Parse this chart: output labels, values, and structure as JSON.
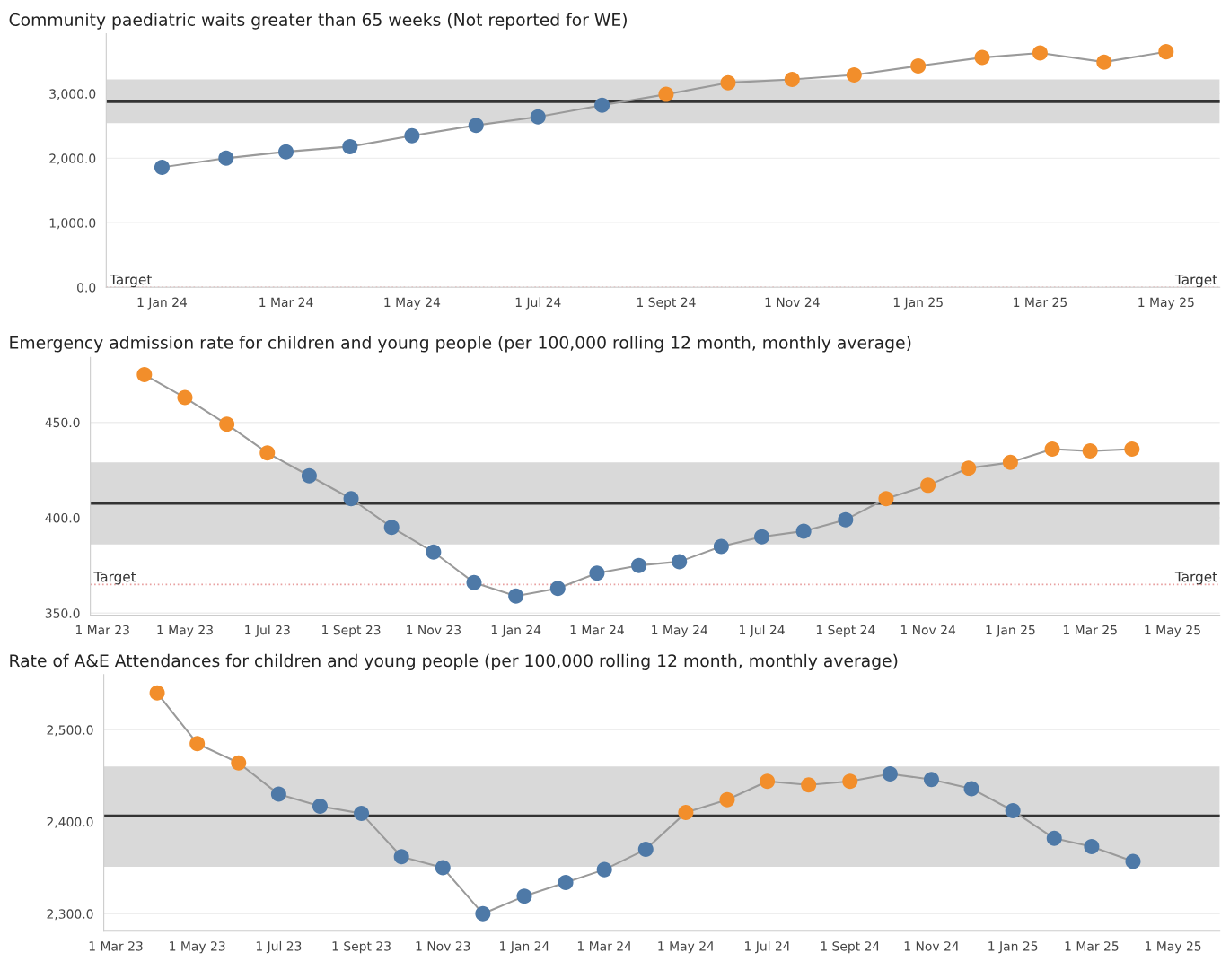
{
  "chart_data": [
    {
      "type": "line",
      "title": "Community paediatric waits greater than 65 weeks (Not reported for WE)",
      "x": [
        "2024-01",
        "2024-02",
        "2024-03",
        "2024-04",
        "2024-05",
        "2024-06",
        "2024-07",
        "2024-08",
        "2024-09",
        "2024-10",
        "2024-11",
        "2024-12",
        "2025-01",
        "2025-02",
        "2025-03",
        "2025-04",
        "2025-05"
      ],
      "series": [
        {
          "color": "#9a9a9a",
          "values": [
            1860,
            2000,
            2100,
            2180,
            2350,
            2510,
            2640,
            2820,
            2990,
            3170,
            3220,
            3290,
            3430,
            3560,
            3630,
            3490,
            3650
          ],
          "colors": [
            "#4e79a7",
            "#4e79a7",
            "#4e79a7",
            "#4e79a7",
            "#4e79a7",
            "#4e79a7",
            "#4e79a7",
            "#4e79a7",
            "#f28e2b",
            "#f28e2b",
            "#f28e2b",
            "#f28e2b",
            "#f28e2b",
            "#f28e2b",
            "#f28e2b",
            "#f28e2b",
            "#f28e2b"
          ]
        }
      ],
      "marker": "circle",
      "xlim": [
        "2023-12-05",
        "2025-05-27"
      ],
      "xticks": [
        {
          "value": "2024-01-01",
          "label": "1 Jan 24"
        },
        {
          "value": "2024-03-01",
          "label": "1 Mar 24"
        },
        {
          "value": "2024-05-01",
          "label": "1 May 24"
        },
        {
          "value": "2024-07-01",
          "label": "1 Jul 24"
        },
        {
          "value": "2024-09-01",
          "label": "1 Sept 24"
        },
        {
          "value": "2024-11-01",
          "label": "1 Nov 24"
        },
        {
          "value": "2025-01-01",
          "label": "1 Jan 25"
        },
        {
          "value": "2025-03-01",
          "label": "1 Mar 25"
        },
        {
          "value": "2025-05-01",
          "label": "1 May 25"
        }
      ],
      "ylim": [
        0,
        3930
      ],
      "yticks": [
        {
          "value": 0,
          "label": "0.0"
        },
        {
          "value": 1000,
          "label": "1,000.0"
        },
        {
          "value": 2000,
          "label": "2,000.0"
        },
        {
          "value": 3000,
          "label": "3,000.0"
        }
      ],
      "grid": "y",
      "bands": [
        {
          "axis": "y",
          "from": 2542,
          "to": 3222,
          "color": "#d9d9d9"
        }
      ],
      "ref_lines": [
        {
          "axis": "y",
          "value": 2875,
          "color": "#333333",
          "line_style": "solid"
        },
        {
          "axis": "y",
          "value": 0,
          "label": "Target",
          "color": "#e8a0a0",
          "line_style": "dotted"
        }
      ]
    },
    {
      "type": "line",
      "title": "Emergency admission rate for children and young people (per 100,000 rolling 12 month, monthly average)",
      "x": [
        "2023-04",
        "2023-05",
        "2023-06",
        "2023-07",
        "2023-08",
        "2023-09",
        "2023-10",
        "2023-11",
        "2023-12",
        "2024-01",
        "2024-02",
        "2024-03",
        "2024-04",
        "2024-05",
        "2024-06",
        "2024-07",
        "2024-08",
        "2024-09",
        "2024-10",
        "2024-11",
        "2024-12",
        "2025-01",
        "2025-02",
        "2025-03",
        "2025-04"
      ],
      "series": [
        {
          "color": "#9a9a9a",
          "values": [
            475,
            463,
            449,
            434,
            422,
            410,
            395,
            382,
            366,
            359,
            363,
            371,
            375,
            377,
            385,
            390,
            393,
            399,
            410,
            417,
            426,
            429,
            436,
            435,
            436
          ],
          "colors": [
            "#f28e2b",
            "#f28e2b",
            "#f28e2b",
            "#f28e2b",
            "#4e79a7",
            "#4e79a7",
            "#4e79a7",
            "#4e79a7",
            "#4e79a7",
            "#4e79a7",
            "#4e79a7",
            "#4e79a7",
            "#4e79a7",
            "#4e79a7",
            "#4e79a7",
            "#4e79a7",
            "#4e79a7",
            "#4e79a7",
            "#f28e2b",
            "#f28e2b",
            "#f28e2b",
            "#f28e2b",
            "#f28e2b",
            "#f28e2b",
            "#f28e2b"
          ]
        }
      ],
      "marker": "circle",
      "xlim": [
        "2023-02-20",
        "2025-06-05"
      ],
      "xticks": [
        {
          "value": "2023-03-01",
          "label": "1 Mar 23"
        },
        {
          "value": "2023-05-01",
          "label": "1 May 23"
        },
        {
          "value": "2023-07-01",
          "label": "1 Jul 23"
        },
        {
          "value": "2023-09-01",
          "label": "1 Sept 23"
        },
        {
          "value": "2023-11-01",
          "label": "1 Nov 23"
        },
        {
          "value": "2024-01-01",
          "label": "1 Jan 24"
        },
        {
          "value": "2024-03-01",
          "label": "1 Mar 24"
        },
        {
          "value": "2024-05-01",
          "label": "1 May 24"
        },
        {
          "value": "2024-07-01",
          "label": "1 Jul 24"
        },
        {
          "value": "2024-09-01",
          "label": "1 Sept 24"
        },
        {
          "value": "2024-11-01",
          "label": "1 Nov 24"
        },
        {
          "value": "2025-01-01",
          "label": "1 Jan 25"
        },
        {
          "value": "2025-03-01",
          "label": "1 Mar 25"
        },
        {
          "value": "2025-05-01",
          "label": "1 May 25"
        }
      ],
      "ylim": [
        349,
        484
      ],
      "yticks": [
        {
          "value": 350,
          "label": "350.0"
        },
        {
          "value": 400,
          "label": "400.0"
        },
        {
          "value": 450,
          "label": "450.0"
        }
      ],
      "grid": "y",
      "bands": [
        {
          "axis": "y",
          "from": 386,
          "to": 429,
          "color": "#d9d9d9"
        }
      ],
      "ref_lines": [
        {
          "axis": "y",
          "value": 407.5,
          "color": "#333333",
          "line_style": "solid"
        },
        {
          "axis": "y",
          "value": 365,
          "label": "Target",
          "color": "#e8a0a0",
          "line_style": "dotted"
        }
      ]
    },
    {
      "type": "line",
      "title": "Rate of A&E Attendances for children and young people (per 100,000 rolling 12 month, monthly average)",
      "x": [
        "2023-04",
        "2023-05",
        "2023-06",
        "2023-07",
        "2023-08",
        "2023-09",
        "2023-10",
        "2023-11",
        "2023-12",
        "2024-01",
        "2024-02",
        "2024-03",
        "2024-04",
        "2024-05",
        "2024-06",
        "2024-07",
        "2024-08",
        "2024-09",
        "2024-10",
        "2024-11",
        "2024-12",
        "2025-01",
        "2025-02",
        "2025-03",
        "2025-04"
      ],
      "series": [
        {
          "color": "#9a9a9a",
          "values": [
            2540,
            2485,
            2464,
            2430,
            2417,
            2409,
            2362,
            2350,
            2300,
            2319,
            2334,
            2348,
            2370,
            2410,
            2424,
            2444,
            2440,
            2444,
            2452,
            2446,
            2436,
            2412,
            2382,
            2373,
            2357
          ],
          "colors": [
            "#f28e2b",
            "#f28e2b",
            "#f28e2b",
            "#4e79a7",
            "#4e79a7",
            "#4e79a7",
            "#4e79a7",
            "#4e79a7",
            "#4e79a7",
            "#4e79a7",
            "#4e79a7",
            "#4e79a7",
            "#4e79a7",
            "#f28e2b",
            "#f28e2b",
            "#f28e2b",
            "#f28e2b",
            "#f28e2b",
            "#4e79a7",
            "#4e79a7",
            "#4e79a7",
            "#4e79a7",
            "#4e79a7",
            "#4e79a7",
            "#4e79a7"
          ]
        }
      ],
      "marker": "circle",
      "xlim": [
        "2023-02-20",
        "2025-06-05"
      ],
      "xticks": [
        {
          "value": "2023-03-01",
          "label": "1 Mar 23"
        },
        {
          "value": "2023-05-01",
          "label": "1 May 23"
        },
        {
          "value": "2023-07-01",
          "label": "1 Jul 23"
        },
        {
          "value": "2023-09-01",
          "label": "1 Sept 23"
        },
        {
          "value": "2023-11-01",
          "label": "1 Nov 23"
        },
        {
          "value": "2024-01-01",
          "label": "1 Jan 24"
        },
        {
          "value": "2024-03-01",
          "label": "1 Mar 24"
        },
        {
          "value": "2024-05-01",
          "label": "1 May 24"
        },
        {
          "value": "2024-07-01",
          "label": "1 Jul 24"
        },
        {
          "value": "2024-09-01",
          "label": "1 Sept 24"
        },
        {
          "value": "2024-11-01",
          "label": "1 Nov 24"
        },
        {
          "value": "2025-01-01",
          "label": "1 Jan 25"
        },
        {
          "value": "2025-03-01",
          "label": "1 Mar 25"
        },
        {
          "value": "2025-05-01",
          "label": "1 May 25"
        }
      ],
      "ylim": [
        2281,
        2560
      ],
      "yticks": [
        {
          "value": 2300,
          "label": "2,300.0"
        },
        {
          "value": 2400,
          "label": "2,400.0"
        },
        {
          "value": 2500,
          "label": "2,500.0"
        }
      ],
      "grid": "y",
      "bands": [
        {
          "axis": "y",
          "from": 2351,
          "to": 2460,
          "color": "#d9d9d9"
        }
      ],
      "ref_lines": [
        {
          "axis": "y",
          "value": 2406.5,
          "color": "#333333",
          "line_style": "solid"
        }
      ]
    }
  ]
}
